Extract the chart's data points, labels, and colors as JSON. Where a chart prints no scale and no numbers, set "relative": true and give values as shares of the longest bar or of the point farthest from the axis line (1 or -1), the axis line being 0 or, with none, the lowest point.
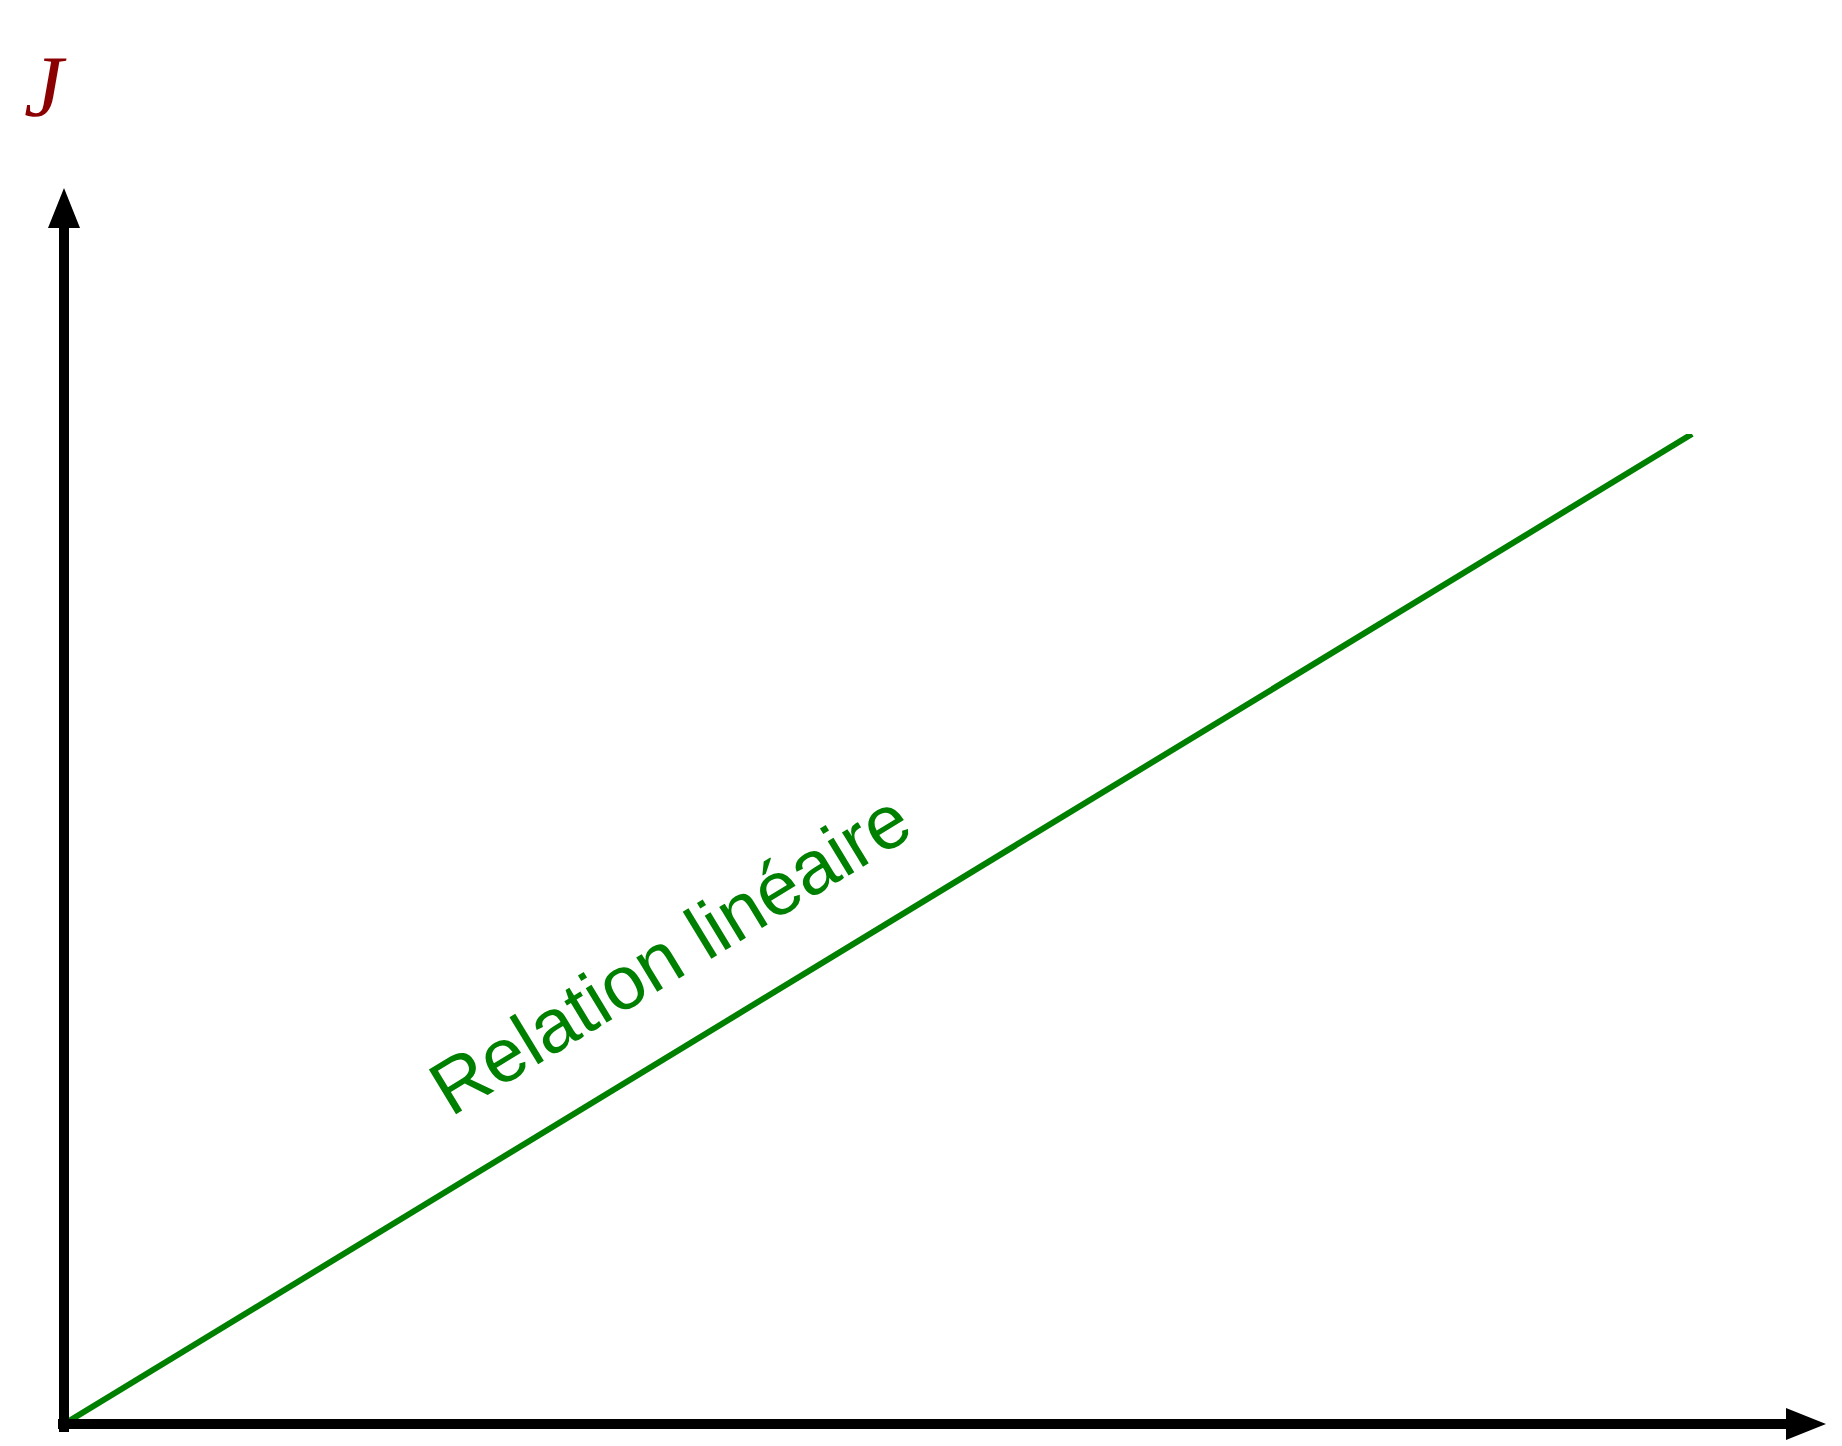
{
  "chart_data": {
    "type": "line",
    "ylabel": "J",
    "categories": [
      null,
      null
    ],
    "relative": true,
    "series": [
      {
        "color": "#008000",
        "values": [
          0,
          1
        ]
      }
    ],
    "annotations": [
      "Relation linéaire"
    ],
    "legend": false,
    "marker": "none",
    "line_style": "solid"
  }
}
